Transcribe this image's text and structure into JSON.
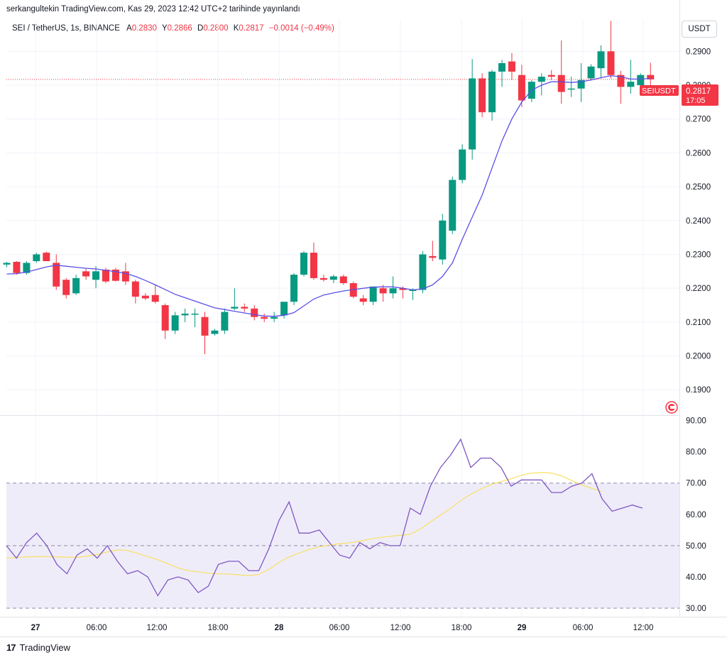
{
  "header": {
    "published_line": "serkangultekin TradingView.com, Kas 29, 2023 12:42 UTC+2 tarihinde yayınlandı",
    "symbol_line": "SEI / TetherUS, 1s, BINANCE",
    "ohlc": {
      "o_label": "A",
      "o_value": "0.2830",
      "h_label": "Y",
      "h_value": "0.2866",
      "l_label": "D",
      "l_value": "0.2800",
      "c_label": "K",
      "c_value": "0.2817",
      "change": "−0.0014 (−0.49%)"
    },
    "currency_button": "USDT"
  },
  "price_tag": {
    "symbol": "SEIUSDT",
    "price": "0.2817",
    "countdown": "17:05"
  },
  "footer": {
    "brand": "TradingView",
    "logo_glyph": "17"
  },
  "colors": {
    "up": "#089981",
    "down": "#f23645",
    "ma": "#5b50e6",
    "rsi": "#7e57c2",
    "rsi_ma": "#f7e26b",
    "rsi_band": "#efecfa",
    "grid": "#f0f3fa"
  },
  "chart_data": [
    {
      "type": "candlestick",
      "title": "",
      "y_ticks": [
        "0.2900",
        "0.2800",
        "0.2700",
        "0.2600",
        "0.2500",
        "0.2400",
        "0.2300",
        "0.2200",
        "0.2100",
        "0.2000",
        "0.1900"
      ],
      "ylim": [
        0.1825,
        0.2995
      ],
      "last_price_line": 0.2817,
      "x_ticks": [
        "27",
        "06:00",
        "12:00",
        "18:00",
        "28",
        "06:00",
        "12:00",
        "18:00",
        "29",
        "06:00",
        "12:00"
      ],
      "grid": true,
      "candles": [
        {
          "o": 0.227,
          "h": 0.2278,
          "l": 0.2262,
          "c": 0.2275
        },
        {
          "o": 0.2278,
          "h": 0.228,
          "l": 0.224,
          "c": 0.2245
        },
        {
          "o": 0.2245,
          "h": 0.228,
          "l": 0.224,
          "c": 0.2275
        },
        {
          "o": 0.228,
          "h": 0.2305,
          "l": 0.2275,
          "c": 0.23
        },
        {
          "o": 0.2305,
          "h": 0.2308,
          "l": 0.228,
          "c": 0.228
        },
        {
          "o": 0.2275,
          "h": 0.23,
          "l": 0.2195,
          "c": 0.2205
        },
        {
          "o": 0.2225,
          "h": 0.223,
          "l": 0.217,
          "c": 0.218
        },
        {
          "o": 0.2185,
          "h": 0.224,
          "l": 0.218,
          "c": 0.223
        },
        {
          "o": 0.225,
          "h": 0.226,
          "l": 0.2225,
          "c": 0.2235
        },
        {
          "o": 0.2225,
          "h": 0.2265,
          "l": 0.22,
          "c": 0.225
        },
        {
          "o": 0.2255,
          "h": 0.226,
          "l": 0.2215,
          "c": 0.222
        },
        {
          "o": 0.2255,
          "h": 0.226,
          "l": 0.222,
          "c": 0.2222
        },
        {
          "o": 0.225,
          "h": 0.2275,
          "l": 0.221,
          "c": 0.222
        },
        {
          "o": 0.222,
          "h": 0.2225,
          "l": 0.2155,
          "c": 0.2175
        },
        {
          "o": 0.2178,
          "h": 0.2185,
          "l": 0.2165,
          "c": 0.217
        },
        {
          "o": 0.218,
          "h": 0.221,
          "l": 0.2155,
          "c": 0.216
        },
        {
          "o": 0.215,
          "h": 0.2155,
          "l": 0.205,
          "c": 0.2075
        },
        {
          "o": 0.2075,
          "h": 0.213,
          "l": 0.2065,
          "c": 0.212
        },
        {
          "o": 0.212,
          "h": 0.214,
          "l": 0.21,
          "c": 0.2125
        },
        {
          "o": 0.2125,
          "h": 0.214,
          "l": 0.2085,
          "c": 0.2125
        },
        {
          "o": 0.2115,
          "h": 0.213,
          "l": 0.2005,
          "c": 0.206
        },
        {
          "o": 0.2065,
          "h": 0.208,
          "l": 0.206,
          "c": 0.2075
        },
        {
          "o": 0.2075,
          "h": 0.214,
          "l": 0.2065,
          "c": 0.213
        },
        {
          "o": 0.214,
          "h": 0.22,
          "l": 0.2135,
          "c": 0.2145
        },
        {
          "o": 0.2145,
          "h": 0.2155,
          "l": 0.213,
          "c": 0.214
        },
        {
          "o": 0.214,
          "h": 0.215,
          "l": 0.2105,
          "c": 0.2115
        },
        {
          "o": 0.2115,
          "h": 0.2125,
          "l": 0.21,
          "c": 0.211
        },
        {
          "o": 0.211,
          "h": 0.213,
          "l": 0.21,
          "c": 0.2115
        },
        {
          "o": 0.212,
          "h": 0.216,
          "l": 0.211,
          "c": 0.216
        },
        {
          "o": 0.216,
          "h": 0.2245,
          "l": 0.215,
          "c": 0.224
        },
        {
          "o": 0.224,
          "h": 0.231,
          "l": 0.2235,
          "c": 0.2305
        },
        {
          "o": 0.2305,
          "h": 0.2335,
          "l": 0.2225,
          "c": 0.223
        },
        {
          "o": 0.223,
          "h": 0.224,
          "l": 0.222,
          "c": 0.2225
        },
        {
          "o": 0.2225,
          "h": 0.224,
          "l": 0.2215,
          "c": 0.2235
        },
        {
          "o": 0.2235,
          "h": 0.224,
          "l": 0.221,
          "c": 0.2215
        },
        {
          "o": 0.2215,
          "h": 0.222,
          "l": 0.217,
          "c": 0.2175
        },
        {
          "o": 0.217,
          "h": 0.218,
          "l": 0.215,
          "c": 0.216
        },
        {
          "o": 0.216,
          "h": 0.2205,
          "l": 0.215,
          "c": 0.2205
        },
        {
          "o": 0.22,
          "h": 0.221,
          "l": 0.216,
          "c": 0.2185
        },
        {
          "o": 0.2185,
          "h": 0.2235,
          "l": 0.217,
          "c": 0.22
        },
        {
          "o": 0.22,
          "h": 0.2205,
          "l": 0.217,
          "c": 0.2195
        },
        {
          "o": 0.2195,
          "h": 0.22,
          "l": 0.2165,
          "c": 0.2195
        },
        {
          "o": 0.2195,
          "h": 0.231,
          "l": 0.2185,
          "c": 0.23
        },
        {
          "o": 0.2295,
          "h": 0.234,
          "l": 0.228,
          "c": 0.229
        },
        {
          "o": 0.2285,
          "h": 0.242,
          "l": 0.227,
          "c": 0.24
        },
        {
          "o": 0.237,
          "h": 0.253,
          "l": 0.236,
          "c": 0.252
        },
        {
          "o": 0.252,
          "h": 0.2625,
          "l": 0.251,
          "c": 0.261
        },
        {
          "o": 0.261,
          "h": 0.2877,
          "l": 0.258,
          "c": 0.282
        },
        {
          "o": 0.282,
          "h": 0.2835,
          "l": 0.2705,
          "c": 0.272
        },
        {
          "o": 0.272,
          "h": 0.2845,
          "l": 0.2695,
          "c": 0.284
        },
        {
          "o": 0.284,
          "h": 0.2875,
          "l": 0.2795,
          "c": 0.2865
        },
        {
          "o": 0.287,
          "h": 0.2895,
          "l": 0.2815,
          "c": 0.284
        },
        {
          "o": 0.283,
          "h": 0.286,
          "l": 0.2735,
          "c": 0.2755
        },
        {
          "o": 0.276,
          "h": 0.2815,
          "l": 0.275,
          "c": 0.281
        },
        {
          "o": 0.281,
          "h": 0.2835,
          "l": 0.277,
          "c": 0.2825
        },
        {
          "o": 0.283,
          "h": 0.2845,
          "l": 0.2815,
          "c": 0.2825
        },
        {
          "o": 0.283,
          "h": 0.2932,
          "l": 0.2745,
          "c": 0.278
        },
        {
          "o": 0.279,
          "h": 0.2825,
          "l": 0.2765,
          "c": 0.279
        },
        {
          "o": 0.279,
          "h": 0.2865,
          "l": 0.275,
          "c": 0.2815
        },
        {
          "o": 0.282,
          "h": 0.2862,
          "l": 0.2815,
          "c": 0.2855
        },
        {
          "o": 0.285,
          "h": 0.2918,
          "l": 0.282,
          "c": 0.29
        },
        {
          "o": 0.29,
          "h": 0.299,
          "l": 0.282,
          "c": 0.283
        },
        {
          "o": 0.283,
          "h": 0.2842,
          "l": 0.2745,
          "c": 0.2795
        },
        {
          "o": 0.2795,
          "h": 0.2875,
          "l": 0.2775,
          "c": 0.281
        },
        {
          "o": 0.28,
          "h": 0.2835,
          "l": 0.277,
          "c": 0.283
        },
        {
          "o": 0.283,
          "h": 0.2866,
          "l": 0.28,
          "c": 0.2817
        }
      ],
      "moving_average": [
        0.2242,
        0.2243,
        0.2248,
        0.2255,
        0.2263,
        0.2268,
        0.2265,
        0.2262,
        0.2259,
        0.2257,
        0.2253,
        0.2249,
        0.2244,
        0.2235,
        0.2223,
        0.221,
        0.2196,
        0.2182,
        0.2172,
        0.2162,
        0.2152,
        0.2142,
        0.2137,
        0.2132,
        0.2127,
        0.2122,
        0.2118,
        0.2117,
        0.212,
        0.2128,
        0.2148,
        0.2168,
        0.218,
        0.2186,
        0.2192,
        0.2196,
        0.22,
        0.2203,
        0.2204,
        0.2204,
        0.22,
        0.2195,
        0.2198,
        0.221,
        0.2235,
        0.2275,
        0.2345,
        0.241,
        0.2475,
        0.2555,
        0.2635,
        0.27,
        0.275,
        0.2785,
        0.28,
        0.281,
        0.281,
        0.2808,
        0.281,
        0.2815,
        0.2822,
        0.2828,
        0.2825,
        0.2818,
        0.2818,
        0.282
      ]
    },
    {
      "type": "line",
      "title": "",
      "y_ticks": [
        "90.00",
        "80.00",
        "70.00",
        "60.00",
        "50.00",
        "40.00",
        "30.00"
      ],
      "ylim": [
        27.5,
        91.5
      ],
      "bands": {
        "upper": 70,
        "middle": 50,
        "lower": 30
      },
      "grid": true,
      "series": [
        {
          "values": [
            50,
            46,
            51,
            54,
            50,
            44,
            41,
            47,
            49,
            46,
            50,
            45,
            41,
            42,
            40,
            34,
            39,
            40,
            39,
            35,
            37,
            44,
            45,
            45,
            42,
            42,
            49,
            58,
            64,
            54,
            54,
            55,
            51,
            47,
            46,
            51,
            49,
            51,
            50,
            50,
            62,
            60,
            69,
            75,
            79,
            84,
            75,
            78,
            78,
            75,
            69,
            71,
            71,
            71,
            67,
            67,
            69,
            70,
            73,
            65,
            61,
            62,
            63,
            62
          ]
        },
        {
          "values": [
            46,
            46.2,
            46.4,
            46.5,
            46.5,
            46.4,
            46.3,
            46.3,
            46.6,
            47.2,
            48,
            48.6,
            48.5,
            47.5,
            46.5,
            45.5,
            44.2,
            42.9,
            42,
            41.6,
            41.2,
            41,
            40.9,
            40.7,
            40.4,
            40.8,
            42.4,
            44.6,
            46.4,
            47.6,
            48.8,
            49.6,
            50.2,
            50.6,
            50.9,
            51.4,
            52.1,
            52.6,
            53,
            53.3,
            53.6,
            55.3,
            57.6,
            59.8,
            61.9,
            64.4,
            66.4,
            68.1,
            69.5,
            70.5,
            71.4,
            72.5,
            73.2,
            73.4,
            73.2,
            72.3,
            70.8,
            69.4,
            68.3,
            67.3
          ]
        }
      ]
    }
  ]
}
